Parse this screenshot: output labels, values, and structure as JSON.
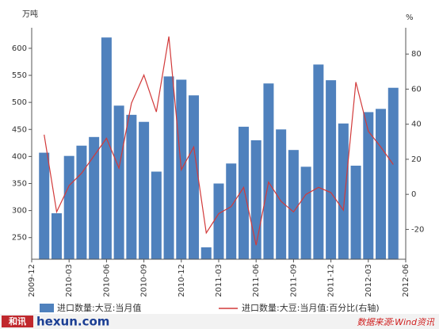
{
  "chart_data": {
    "type": "bar",
    "y_unit_label": "万吨",
    "y2_unit_label": "%",
    "categories": [
      "2009-12",
      null,
      null,
      "2010-03",
      null,
      null,
      "2010-06",
      null,
      null,
      "2010-09",
      null,
      null,
      "2010-12",
      null,
      null,
      "2011-03",
      null,
      null,
      "2011-06",
      null,
      null,
      "2011-09",
      null,
      null,
      "2011-12",
      null,
      null,
      "2012-03",
      null,
      null,
      "2012-06"
    ],
    "series": [
      {
        "name": "进口数量:大豆:当月值",
        "type": "bar",
        "color": "#4f81bd",
        "values": [
          null,
          407,
          295,
          401,
          420,
          436,
          620,
          494,
          477,
          464,
          372,
          548,
          542,
          513,
          232,
          350,
          387,
          455,
          430,
          535,
          450,
          412,
          381,
          570,
          541,
          461,
          383,
          482,
          488,
          527,
          null
        ]
      },
      {
        "name": "进口数量:大豆:当月值:百分比(右轴)",
        "type": "line",
        "axis": "y2",
        "color": "#d23a3a",
        "values": [
          null,
          34,
          -10,
          5,
          12,
          22,
          32,
          15,
          52,
          68,
          47,
          90,
          14,
          27,
          -22,
          -11,
          -7,
          4,
          -29,
          7,
          -4,
          -10,
          0,
          4,
          1,
          -9,
          64,
          36,
          27,
          17,
          null
        ]
      }
    ],
    "ylim": [
      210,
      638
    ],
    "yticks": [
      250,
      300,
      350,
      400,
      450,
      500,
      550,
      600
    ],
    "y2lim": [
      -37,
      95
    ],
    "y2ticks": [
      -20,
      0,
      20,
      40,
      60,
      80
    ],
    "logo_cn": "和讯",
    "logo": "hexun.com",
    "source": "数据来源:Wind资讯"
  }
}
